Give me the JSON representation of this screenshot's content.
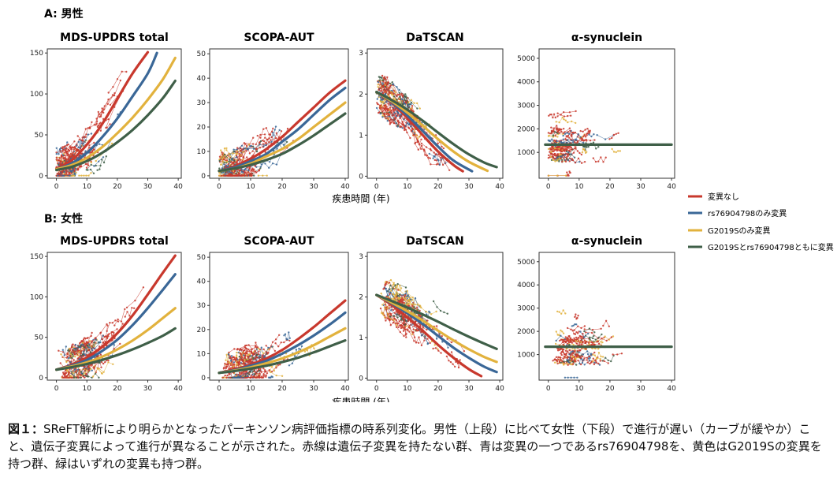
{
  "sections": [
    {
      "label": "A: 男性",
      "xlabel": "疾患時間 (年)"
    },
    {
      "label": "B: 女性",
      "xlabel": "疾患時間 (年)"
    }
  ],
  "legend": {
    "entries": [
      {
        "label": "変異なし",
        "color": "#c8382d"
      },
      {
        "label": "rs76904798のみ変異",
        "color": "#3a6797"
      },
      {
        "label": "G2019Sのみ変異",
        "color": "#e2b23d"
      },
      {
        "label": "G2019Sとrs76904798ともに変異",
        "color": "#3f5f48"
      }
    ]
  },
  "caption": {
    "lead": "図１：",
    "body": "SReFT解析により明らかとなったパーキンソン病評価指標の時系列変化。男性（上段）に比べて女性（下段）で進行が遅い（カーブが緩やか）こと、遺伝子変異によって進行が異なることが示された。赤線は遺伝子変異を持たない群、青は変異の一つであるrs76904798を、黄色はG2019Sの変異を持つ群、緑はいずれの変異も持つ群。"
  },
  "chart_data": [
    {
      "panel": "A",
      "type": "line",
      "title": "MDS-UPDRS total",
      "xlim": [
        -3,
        41
      ],
      "ylim": [
        -3,
        155
      ],
      "xticks": [
        0,
        10,
        20,
        30,
        40
      ],
      "yticks": [
        0,
        50,
        100,
        150
      ],
      "series": [
        {
          "name": "変異なし",
          "x": [
            0,
            5,
            10,
            15,
            20,
            25,
            30
          ],
          "values": [
            9,
            19,
            38,
            63,
            94,
            125,
            151
          ]
        },
        {
          "name": "rs76904798のみ変異",
          "x": [
            0,
            5,
            10,
            15,
            20,
            25,
            30,
            33
          ],
          "values": [
            8,
            15,
            28,
            47,
            70,
            97,
            125,
            150
          ]
        },
        {
          "name": "G2019Sのみ変異",
          "x": [
            0,
            5,
            10,
            15,
            20,
            25,
            30,
            35,
            39
          ],
          "values": [
            8,
            13,
            22,
            35,
            52,
            71,
            93,
            118,
            144
          ]
        },
        {
          "name": "G2019Sとrs76904798ともに変異",
          "x": [
            0,
            5,
            10,
            15,
            20,
            25,
            30,
            35,
            39
          ],
          "values": [
            7,
            11,
            18,
            28,
            41,
            56,
            74,
            95,
            116
          ]
        }
      ]
    },
    {
      "panel": "A",
      "type": "line",
      "title": "SCOPA-AUT",
      "xlim": [
        -3,
        41
      ],
      "ylim": [
        -1,
        52
      ],
      "xticks": [
        0,
        10,
        20,
        30,
        40
      ],
      "yticks": [
        0,
        10,
        20,
        30,
        40,
        50
      ],
      "series": [
        {
          "name": "変異なし",
          "x": [
            0,
            5,
            10,
            15,
            20,
            25,
            30,
            35,
            40
          ],
          "values": [
            2,
            4,
            7,
            11,
            16,
            22,
            28,
            34,
            39
          ]
        },
        {
          "name": "rs76904798のみ変異",
          "x": [
            0,
            5,
            10,
            15,
            20,
            25,
            30,
            35,
            40
          ],
          "values": [
            2,
            3.5,
            6,
            9,
            14,
            19,
            25,
            31,
            36
          ]
        },
        {
          "name": "G2019Sのみ変異",
          "x": [
            0,
            5,
            10,
            15,
            20,
            25,
            30,
            35,
            40
          ],
          "values": [
            2,
            3,
            5,
            8,
            11,
            15,
            20,
            25,
            30
          ]
        },
        {
          "name": "G2019Sとrs76904798ともに変異",
          "x": [
            0,
            5,
            10,
            15,
            20,
            25,
            30,
            35,
            40
          ],
          "values": [
            2,
            3,
            4.5,
            6.5,
            9,
            12.5,
            16.5,
            21,
            25.5
          ]
        }
      ]
    },
    {
      "panel": "A",
      "type": "line",
      "title": "DaTSCAN",
      "xlim": [
        -3,
        41
      ],
      "ylim": [
        -0.05,
        3.1
      ],
      "xticks": [
        0,
        10,
        20,
        30,
        40
      ],
      "yticks": [
        0,
        1,
        2,
        3
      ],
      "series": [
        {
          "name": "変異なし",
          "x": [
            0,
            5,
            10,
            15,
            20,
            25,
            28
          ],
          "values": [
            2.05,
            1.78,
            1.42,
            1.0,
            0.6,
            0.27,
            0.12
          ]
        },
        {
          "name": "rs76904798のみ変異",
          "x": [
            0,
            5,
            10,
            15,
            20,
            25,
            31
          ],
          "values": [
            2.05,
            1.8,
            1.48,
            1.1,
            0.72,
            0.38,
            0.12
          ]
        },
        {
          "name": "G2019Sのみ変異",
          "x": [
            0,
            5,
            10,
            15,
            20,
            25,
            30,
            36
          ],
          "values": [
            2.05,
            1.82,
            1.55,
            1.23,
            0.9,
            0.6,
            0.35,
            0.13
          ]
        },
        {
          "name": "G2019Sとrs76904798ともに変異",
          "x": [
            0,
            5,
            10,
            15,
            20,
            25,
            30,
            35,
            39
          ],
          "values": [
            2.05,
            1.85,
            1.62,
            1.35,
            1.06,
            0.78,
            0.53,
            0.33,
            0.22
          ]
        }
      ]
    },
    {
      "panel": "A",
      "type": "line",
      "title": "α-synuclein",
      "xlim": [
        -3,
        41
      ],
      "ylim": [
        -100,
        5400
      ],
      "xticks": [
        0,
        10,
        20,
        30,
        40
      ],
      "yticks": [
        1000,
        2000,
        3000,
        4000,
        5000
      ],
      "series": [
        {
          "name": "G2019Sとrs76904798ともに変異",
          "x": [
            -1,
            40
          ],
          "values": [
            1330,
            1330
          ]
        }
      ]
    },
    {
      "panel": "B",
      "type": "line",
      "title": "MDS-UPDRS total",
      "xlim": [
        -3,
        41
      ],
      "ylim": [
        -3,
        155
      ],
      "xticks": [
        0,
        10,
        20,
        30,
        40
      ],
      "yticks": [
        0,
        50,
        100,
        150
      ],
      "series": [
        {
          "name": "変異なし",
          "x": [
            0,
            5,
            10,
            15,
            20,
            25,
            30,
            35,
            39
          ],
          "values": [
            10,
            16,
            25,
            38,
            55,
            77,
            103,
            130,
            151
          ]
        },
        {
          "name": "rs76904798のみ変異",
          "x": [
            0,
            5,
            10,
            15,
            20,
            25,
            30,
            35,
            39
          ],
          "values": [
            10,
            15,
            22,
            33,
            47,
            65,
            86,
            109,
            128
          ]
        },
        {
          "name": "G2019Sのみ変異",
          "x": [
            0,
            5,
            10,
            15,
            20,
            25,
            30,
            35,
            39
          ],
          "values": [
            10,
            14,
            19,
            26,
            35,
            46,
            59,
            74,
            86
          ]
        },
        {
          "name": "G2019Sとrs76904798ともに変異",
          "x": [
            0,
            5,
            10,
            15,
            20,
            25,
            30,
            35,
            39
          ],
          "values": [
            10,
            13,
            17,
            22,
            28,
            35,
            43,
            52,
            61
          ]
        }
      ]
    },
    {
      "panel": "B",
      "type": "line",
      "title": "SCOPA-AUT",
      "xlim": [
        -3,
        41
      ],
      "ylim": [
        -1,
        52
      ],
      "xticks": [
        0,
        10,
        20,
        30,
        40
      ],
      "yticks": [
        0,
        10,
        20,
        30,
        40,
        50
      ],
      "series": [
        {
          "name": "変異なし",
          "x": [
            0,
            5,
            10,
            15,
            20,
            25,
            30,
            35,
            40
          ],
          "values": [
            2,
            3.5,
            5.5,
            8,
            11.5,
            16,
            21,
            26.5,
            32
          ]
        },
        {
          "name": "rs76904798のみ変異",
          "x": [
            0,
            5,
            10,
            15,
            20,
            25,
            30,
            35,
            40
          ],
          "values": [
            2,
            3.2,
            5,
            7,
            10,
            13.5,
            17.5,
            22,
            27
          ]
        },
        {
          "name": "G2019Sのみ変異",
          "x": [
            0,
            5,
            10,
            15,
            20,
            25,
            30,
            35,
            40
          ],
          "values": [
            2,
            3,
            4.3,
            6,
            8,
            10.5,
            13.5,
            17,
            20.5
          ]
        },
        {
          "name": "G2019Sとrs76904798ともに変異",
          "x": [
            0,
            5,
            10,
            15,
            20,
            25,
            30,
            35,
            40
          ],
          "values": [
            2,
            2.8,
            3.8,
            5,
            6.5,
            8.3,
            10.5,
            13,
            15.5
          ]
        }
      ]
    },
    {
      "panel": "B",
      "type": "line",
      "title": "DaTSCAN",
      "xlim": [
        -3,
        41
      ],
      "ylim": [
        -0.05,
        3.1
      ],
      "xticks": [
        0,
        10,
        20,
        30,
        40
      ],
      "yticks": [
        0,
        1,
        2,
        3
      ],
      "series": [
        {
          "name": "変異なし",
          "x": [
            0,
            5,
            10,
            15,
            20,
            25,
            30,
            34
          ],
          "values": [
            2.05,
            1.8,
            1.5,
            1.17,
            0.82,
            0.5,
            0.22,
            0.05
          ]
        },
        {
          "name": "rs76904798のみ変異",
          "x": [
            0,
            5,
            10,
            15,
            20,
            25,
            30,
            35,
            39
          ],
          "values": [
            2.05,
            1.84,
            1.6,
            1.33,
            1.04,
            0.75,
            0.5,
            0.28,
            0.15
          ]
        },
        {
          "name": "G2019Sのみ変異",
          "x": [
            0,
            5,
            10,
            15,
            20,
            25,
            30,
            35,
            39
          ],
          "values": [
            2.05,
            1.86,
            1.65,
            1.42,
            1.17,
            0.93,
            0.71,
            0.52,
            0.4
          ]
        },
        {
          "name": "G2019Sとrs76904798ともに変異",
          "x": [
            0,
            5,
            10,
            15,
            20,
            25,
            30,
            35,
            39
          ],
          "values": [
            2.05,
            1.9,
            1.74,
            1.57,
            1.39,
            1.2,
            1.02,
            0.85,
            0.72
          ]
        }
      ]
    },
    {
      "panel": "B",
      "type": "line",
      "title": "α-synuclein",
      "xlim": [
        -3,
        41
      ],
      "ylim": [
        -100,
        5400
      ],
      "xticks": [
        0,
        10,
        20,
        30,
        40
      ],
      "yticks": [
        1000,
        2000,
        3000,
        4000,
        5000
      ],
      "series": [
        {
          "name": "G2019Sとrs76904798ともに変異",
          "x": [
            -1,
            40
          ],
          "values": [
            1340,
            1340
          ]
        }
      ]
    }
  ]
}
